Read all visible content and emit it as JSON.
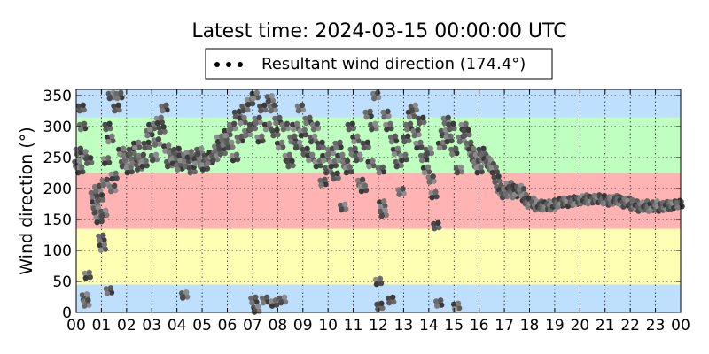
{
  "chart_data": {
    "type": "scatter",
    "title": "Latest time: 2024-03-15 00:00:00 UTC",
    "ylabel": "Wind direction (°)",
    "xlabel": "",
    "xlim": [
      0,
      24
    ],
    "ylim": [
      0,
      360
    ],
    "x_ticks": [
      "00",
      "01",
      "02",
      "03",
      "04",
      "05",
      "06",
      "07",
      "08",
      "09",
      "10",
      "11",
      "12",
      "13",
      "14",
      "15",
      "16",
      "17",
      "18",
      "19",
      "20",
      "21",
      "22",
      "23",
      "00"
    ],
    "y_ticks": [
      0,
      50,
      100,
      150,
      200,
      250,
      300,
      350
    ],
    "grid": true,
    "legend": {
      "placement": "top-center",
      "entries": [
        "Resultant wind direction (174.4°)"
      ]
    },
    "bands": [
      {
        "from": 0,
        "to": 45,
        "color": "#bfdfff"
      },
      {
        "from": 45,
        "to": 135,
        "color": "#ffffb3"
      },
      {
        "from": 135,
        "to": 225,
        "color": "#ffb3b3"
      },
      {
        "from": 225,
        "to": 315,
        "color": "#bfffbf"
      },
      {
        "from": 315,
        "to": 360,
        "color": "#bfdfff"
      }
    ],
    "series": [
      {
        "name": "Resultant wind direction (174.4°)",
        "points": [
          [
            0.05,
            240
          ],
          [
            0.1,
            260
          ],
          [
            0.15,
            230
          ],
          [
            0.2,
            330
          ],
          [
            0.25,
            300
          ],
          [
            0.3,
            255
          ],
          [
            0.35,
            25
          ],
          [
            0.4,
            15
          ],
          [
            0.45,
            60
          ],
          [
            0.5,
            245
          ],
          [
            0.7,
            190
          ],
          [
            0.75,
            175
          ],
          [
            0.8,
            165
          ],
          [
            0.85,
            200
          ],
          [
            0.9,
            150
          ],
          [
            0.95,
            185
          ],
          [
            1.0,
            120
          ],
          [
            1.05,
            105
          ],
          [
            1.1,
            160
          ],
          [
            1.15,
            210
          ],
          [
            1.2,
            245
          ],
          [
            1.25,
            300
          ],
          [
            1.3,
            35
          ],
          [
            1.35,
            280
          ],
          [
            1.4,
            350
          ],
          [
            1.45,
            200
          ],
          [
            1.5,
            220
          ],
          [
            1.6,
            330
          ],
          [
            1.7,
            350
          ],
          [
            1.8,
            260
          ],
          [
            1.9,
            240
          ],
          [
            2.0,
            250
          ],
          [
            2.1,
            230
          ],
          [
            2.2,
            260
          ],
          [
            2.3,
            245
          ],
          [
            2.4,
            270
          ],
          [
            2.5,
            235
          ],
          [
            2.6,
            250
          ],
          [
            2.7,
            240
          ],
          [
            2.8,
            270
          ],
          [
            2.9,
            290
          ],
          [
            3.0,
            300
          ],
          [
            3.1,
            250
          ],
          [
            3.2,
            275
          ],
          [
            3.3,
            310
          ],
          [
            3.4,
            295
          ],
          [
            3.5,
            330
          ],
          [
            3.6,
            265
          ],
          [
            3.7,
            240
          ],
          [
            3.8,
            255
          ],
          [
            3.9,
            245
          ],
          [
            4.0,
            260
          ],
          [
            4.1,
            235
          ],
          [
            4.2,
            250
          ],
          [
            4.3,
            28
          ],
          [
            4.4,
            240
          ],
          [
            4.5,
            255
          ],
          [
            4.6,
            230
          ],
          [
            4.7,
            250
          ],
          [
            4.8,
            245
          ],
          [
            4.9,
            260
          ],
          [
            5.0,
            240
          ],
          [
            5.1,
            235
          ],
          [
            5.2,
            250
          ],
          [
            5.3,
            245
          ],
          [
            5.4,
            255
          ],
          [
            5.5,
            250
          ],
          [
            5.6,
            265
          ],
          [
            5.7,
            280
          ],
          [
            5.8,
            260
          ],
          [
            5.9,
            275
          ],
          [
            6.0,
            290
          ],
          [
            6.1,
            270
          ],
          [
            6.2,
            300
          ],
          [
            6.3,
            250
          ],
          [
            6.4,
            320
          ],
          [
            6.5,
            280
          ],
          [
            6.6,
            310
          ],
          [
            6.7,
            330
          ],
          [
            6.8,
            290
          ],
          [
            6.9,
            340
          ],
          [
            7.0,
            300
          ],
          [
            7.05,
            20
          ],
          [
            7.1,
            350
          ],
          [
            7.15,
            5
          ],
          [
            7.2,
            310
          ],
          [
            7.3,
            280
          ],
          [
            7.4,
            330
          ],
          [
            7.5,
            20
          ],
          [
            7.6,
            300
          ],
          [
            7.7,
            345
          ],
          [
            7.8,
            330
          ],
          [
            7.85,
            15
          ],
          [
            7.9,
            290
          ],
          [
            8.0,
            310
          ],
          [
            8.1,
            270
          ],
          [
            8.2,
            20
          ],
          [
            8.3,
            300
          ],
          [
            8.4,
            250
          ],
          [
            8.5,
            240
          ],
          [
            8.6,
            280
          ],
          [
            8.7,
            300
          ],
          [
            8.8,
            270
          ],
          [
            8.9,
            330
          ],
          [
            9.0,
            290
          ],
          [
            9.1,
            260
          ],
          [
            9.2,
            310
          ],
          [
            9.3,
            250
          ],
          [
            9.4,
            280
          ],
          [
            9.5,
            300
          ],
          [
            9.6,
            240
          ],
          [
            9.7,
            270
          ],
          [
            9.8,
            210
          ],
          [
            9.9,
            250
          ],
          [
            10.0,
            230
          ],
          [
            10.1,
            260
          ],
          [
            10.2,
            240
          ],
          [
            10.3,
            220
          ],
          [
            10.4,
            270
          ],
          [
            10.5,
            250
          ],
          [
            10.6,
            170
          ],
          [
            10.7,
            240
          ],
          [
            10.8,
            230
          ],
          [
            10.9,
            300
          ],
          [
            11.0,
            260
          ],
          [
            11.1,
            280
          ],
          [
            11.2,
            250
          ],
          [
            11.3,
            210
          ],
          [
            11.4,
            200
          ],
          [
            11.5,
            270
          ],
          [
            11.6,
            320
          ],
          [
            11.7,
            240
          ],
          [
            11.8,
            300
          ],
          [
            11.9,
            350
          ],
          [
            12.0,
            50
          ],
          [
            12.05,
            10
          ],
          [
            12.1,
            230
          ],
          [
            12.15,
            175
          ],
          [
            12.2,
            160
          ],
          [
            12.3,
            320
          ],
          [
            12.4,
            300
          ],
          [
            12.5,
            20
          ],
          [
            12.6,
            280
          ],
          [
            12.7,
            260
          ],
          [
            12.8,
            240
          ],
          [
            12.9,
            195
          ],
          [
            13.0,
            250
          ],
          [
            13.1,
            280
          ],
          [
            13.2,
            300
          ],
          [
            13.3,
            320
          ],
          [
            13.4,
            330
          ],
          [
            13.5,
            290
          ],
          [
            13.6,
            270
          ],
          [
            13.7,
            310
          ],
          [
            13.8,
            250
          ],
          [
            13.9,
            230
          ],
          [
            14.0,
            260
          ],
          [
            14.1,
            215
          ],
          [
            14.2,
            190
          ],
          [
            14.3,
            140
          ],
          [
            14.4,
            15
          ],
          [
            14.5,
            270
          ],
          [
            14.6,
            290
          ],
          [
            14.7,
            310
          ],
          [
            14.8,
            280
          ],
          [
            14.9,
            300
          ],
          [
            15.0,
            260
          ],
          [
            15.1,
            10
          ],
          [
            15.2,
            230
          ],
          [
            15.3,
            280
          ],
          [
            15.4,
            300
          ],
          [
            15.5,
            290
          ],
          [
            15.6,
            270
          ],
          [
            15.7,
            260
          ],
          [
            15.8,
            250
          ],
          [
            15.9,
            240
          ],
          [
            16.0,
            230
          ],
          [
            16.1,
            260
          ],
          [
            16.2,
            250
          ],
          [
            16.3,
            245
          ],
          [
            16.4,
            240
          ],
          [
            16.5,
            235
          ],
          [
            16.6,
            230
          ],
          [
            16.7,
            215
          ],
          [
            16.8,
            200
          ],
          [
            16.9,
            195
          ],
          [
            17.0,
            190
          ],
          [
            17.1,
            195
          ],
          [
            17.2,
            205
          ],
          [
            17.3,
            200
          ],
          [
            17.4,
            190
          ],
          [
            17.5,
            195
          ],
          [
            17.6,
            200
          ],
          [
            17.7,
            195
          ],
          [
            17.8,
            185
          ],
          [
            17.9,
            180
          ],
          [
            18.0,
            175
          ],
          [
            18.1,
            180
          ],
          [
            18.2,
            175
          ],
          [
            18.3,
            170
          ],
          [
            18.4,
            175
          ],
          [
            18.5,
            172
          ],
          [
            18.6,
            170
          ],
          [
            18.7,
            175
          ],
          [
            18.8,
            172
          ],
          [
            18.9,
            170
          ],
          [
            19.0,
            175
          ],
          [
            19.1,
            178
          ],
          [
            19.2,
            175
          ],
          [
            19.3,
            180
          ],
          [
            19.4,
            178
          ],
          [
            19.5,
            180
          ],
          [
            19.6,
            176
          ],
          [
            19.7,
            182
          ],
          [
            19.8,
            178
          ],
          [
            19.9,
            180
          ],
          [
            20.0,
            182
          ],
          [
            20.1,
            180
          ],
          [
            20.2,
            185
          ],
          [
            20.3,
            182
          ],
          [
            20.4,
            180
          ],
          [
            20.5,
            184
          ],
          [
            20.6,
            182
          ],
          [
            20.7,
            185
          ],
          [
            20.8,
            182
          ],
          [
            20.9,
            184
          ],
          [
            21.0,
            180
          ],
          [
            21.1,
            182
          ],
          [
            21.2,
            178
          ],
          [
            21.3,
            180
          ],
          [
            21.4,
            184
          ],
          [
            21.5,
            182
          ],
          [
            21.6,
            180
          ],
          [
            21.7,
            178
          ],
          [
            21.8,
            175
          ],
          [
            21.9,
            180
          ],
          [
            22.0,
            177
          ],
          [
            22.1,
            172
          ],
          [
            22.2,
            175
          ],
          [
            22.3,
            170
          ],
          [
            22.4,
            168
          ],
          [
            22.5,
            172
          ],
          [
            22.6,
            175
          ],
          [
            22.7,
            170
          ],
          [
            22.8,
            168
          ],
          [
            22.9,
            172
          ],
          [
            23.0,
            175
          ],
          [
            23.1,
            170
          ],
          [
            23.2,
            168
          ],
          [
            23.3,
            172
          ],
          [
            23.4,
            174
          ],
          [
            23.5,
            170
          ],
          [
            23.6,
            172
          ],
          [
            23.7,
            175
          ],
          [
            23.8,
            173
          ],
          [
            23.9,
            176
          ],
          [
            23.95,
            174
          ]
        ]
      }
    ]
  }
}
